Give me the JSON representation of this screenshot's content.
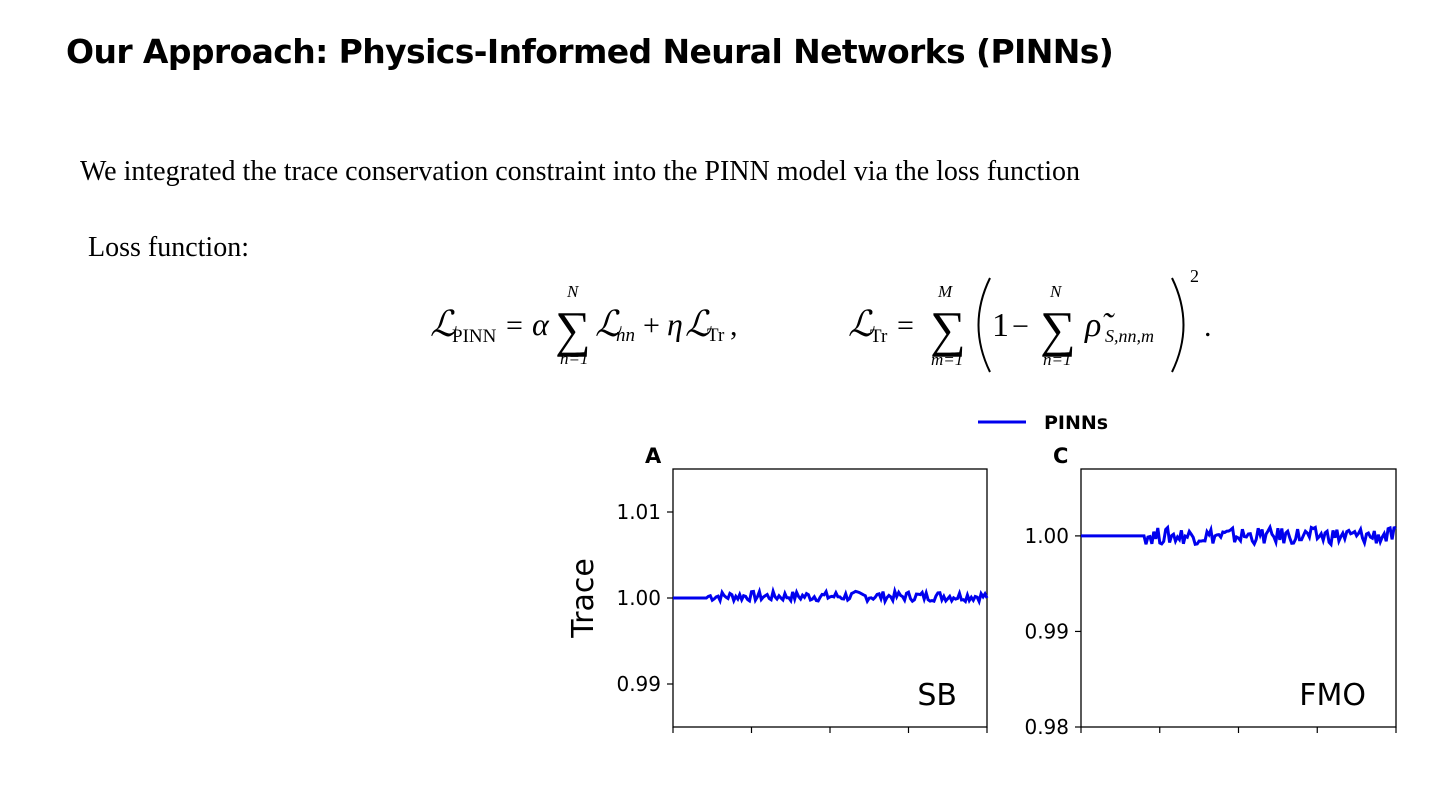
{
  "slide": {
    "title": "Our Approach: Physics-Informed Neural Networks (PINNs)",
    "body": "We integrated the trace conservation constraint into the PINN model via the loss function",
    "loss_label": "Loss function:"
  },
  "equations": {
    "pinn": {
      "L": "ℒ",
      "L_sub": "PINN",
      "eq": "=",
      "alpha": "α",
      "sigma": "∑",
      "upper": "N",
      "lower": "n=1",
      "L2": "ℒ",
      "L2_sub": "nn",
      "plus": "+",
      "eta": "η",
      "L3": "ℒ",
      "L3_sub": "Tr",
      "comma": ","
    },
    "trace": {
      "L": "ℒ",
      "L_sub": "Tr",
      "eq": "=",
      "sigma1": "∑",
      "upper1": "M",
      "lower1": "m=1",
      "one": "1",
      "minus": "−",
      "sigma2": "∑",
      "upper2": "N",
      "lower2": "n=1",
      "rho": "ρ̃",
      "rho_sub": "S,nn,m",
      "power": "2",
      "period": "."
    }
  },
  "colors": {
    "series": "#0000ee"
  },
  "legend": {
    "label": "PINNs"
  },
  "chart_data": [
    {
      "type": "line",
      "panel_label": "A",
      "annotation": "SB",
      "ylabel": "Trace",
      "ylim": [
        0.985,
        1.015
      ],
      "yticks": [
        0.99,
        1.0,
        1.01
      ],
      "yticklabels": [
        "0.99",
        "1.00",
        "1.01"
      ],
      "xtick_count": 5,
      "series": [
        {
          "name": "PINNs",
          "baseline_fraction": 0.11,
          "values": [
            1.0,
            1.0,
            1.0,
            1.0,
            1.0,
            1.0,
            1.0,
            1.0,
            1.0,
            1.0,
            1.0,
            1.0,
            1.0,
            1.0,
            1.0,
            1.0,
            1.0,
            1.0,
            1.0,
            1.0,
            1.0,
            1.0,
            1.0,
            1.0,
            1.0,
            1.0,
            1.0,
            1.0,
            1.0,
            1.0,
            1.0,
            1.0,
            1.0,
            1.0,
            1.0,
            1.0,
            1.0,
            1.0,
            1.0,
            1.0,
            1.0,
            1.0,
            1.0,
            1.0,
            1.0,
            1.0,
            1.0,
            1.0,
            1.0,
            1.0,
            1.0,
            1.0,
            1.0,
            1.0,
            1.0,
            1.0,
            1.0,
            1.0,
            1.0,
            1.0,
            1.0,
            1.0,
            1.0,
            1.0,
            1.0,
            1.0,
            1.0,
            1.0,
            1.0,
            1.0,
            1.0,
            1.0,
            1.0,
            1.0,
            1.0,
            1.0,
            1.0,
            1.0,
            1.0,
            1.0,
            1.0,
            1.0,
            1.0,
            1.0,
            1.0,
            1.0,
            1.0,
            1.0,
            1.0,
            1.0,
            1.0,
            1.0,
            1.0,
            1.0,
            1.0,
            1.0,
            1.0,
            1.0,
            1.0,
            1.0,
            1.0,
            1.0,
            1.0,
            1.0,
            1.0,
            1.0,
            1.0,
            1.0,
            1.0,
            1.0,
            1.0,
            1.0,
            1.0,
            1.0,
            1.0,
            1.0,
            1.0,
            1.0,
            1.0,
            1.0,
            1.0,
            1.0,
            1.0,
            1.0,
            1.0,
            1.0,
            1.0,
            1.0,
            1.0,
            1.0,
            1.0,
            1.0,
            1.0,
            1.0,
            1.0,
            1.0,
            1.0,
            1.0,
            1.0,
            1.0,
            1.0,
            1.0,
            1.0,
            1.0,
            1.0,
            1.0,
            1.0,
            1.0,
            1.0,
            1.0,
            1.0,
            1.0,
            1.0,
            1.0,
            1.0,
            1.0,
            1.0,
            1.0,
            1.0,
            1.0,
            1.0,
            1.0,
            1.0,
            1.0,
            1.0,
            1.0,
            1.0,
            1.0
          ],
          "noise_amplitude": 0.0006
        }
      ]
    },
    {
      "type": "line",
      "panel_label": "C",
      "annotation": "FMO",
      "ylabel": "",
      "ylim": [
        0.98,
        1.007
      ],
      "yticks": [
        0.98,
        0.99,
        1.0
      ],
      "yticklabels": [
        "0.98",
        "0.99",
        "1.00"
      ],
      "xtick_count": 5,
      "series": [
        {
          "name": "PINNs",
          "baseline_fraction": 0.2,
          "values": [
            1.0,
            1.0,
            1.0
          ],
          "noise_amplitude": 0.0009
        }
      ]
    }
  ]
}
